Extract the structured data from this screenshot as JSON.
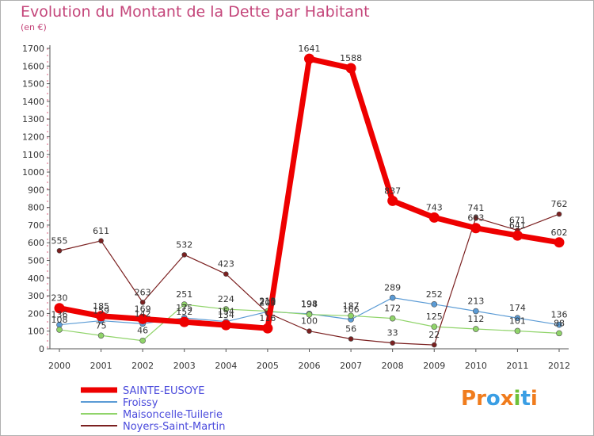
{
  "title": "Evolution du Montant de la Dette par Habitant",
  "unit_label": "(en €)",
  "logo": {
    "text": "Proxiti",
    "letters": [
      "P",
      "r",
      "o",
      "x",
      "i",
      "t",
      "i"
    ],
    "colors": [
      "#f07c1d",
      "#f07c1d",
      "#3a9ee4",
      "#f07c1d",
      "#6ec13a",
      "#3a9ee4",
      "#f07c1d"
    ]
  },
  "chart_data": {
    "type": "line",
    "title": "Evolution du Montant de la Dette par Habitant",
    "ylabel": "(en €)",
    "xlabel": "",
    "ylim": [
      0,
      1700
    ],
    "yticks": [
      0,
      100,
      200,
      300,
      400,
      500,
      600,
      700,
      800,
      900,
      1000,
      1100,
      1200,
      1300,
      1400,
      1500,
      1600,
      1700
    ],
    "categories": [
      "2000",
      "2001",
      "2002",
      "2003",
      "2004",
      "2005",
      "2006",
      "2007",
      "2008",
      "2009",
      "2010",
      "2011",
      "2012"
    ],
    "grid": false,
    "legend_position": "bottom-left",
    "series": [
      {
        "name": "SAINTE-EUSOYE",
        "color": "#ee0000",
        "values": [
          230,
          185,
          169,
          152,
          134,
          116,
          1641,
          1588,
          837,
          743,
          683,
          641,
          602
        ],
        "labels": [
          "230",
          "185",
          "169",
          "152",
          "134",
          "116",
          "1641",
          "1588",
          "837",
          "743",
          "683",
          "641",
          "602"
        ]
      },
      {
        "name": "Froissy",
        "color": "#5b9bd5",
        "values": [
          136,
          159,
          142,
          175,
          154,
          210,
          198,
          166,
          289,
          252,
          213,
          174,
          136
        ],
        "labels": [
          "136",
          "159",
          "142",
          "175",
          "154",
          "210",
          "198",
          "166",
          "289",
          "252",
          "213",
          "174",
          "136"
        ]
      },
      {
        "name": "Maisoncelle-Tuilerie",
        "color": "#90d46a",
        "values": [
          108,
          75,
          46,
          251,
          224,
          213,
          194,
          187,
          172,
          125,
          112,
          101,
          88
        ],
        "labels": [
          "108",
          "75",
          "46",
          "251",
          "224",
          "213",
          "194",
          "187",
          "172",
          "125",
          "112",
          "101",
          "88"
        ]
      },
      {
        "name": "Noyers-Saint-Martin",
        "color": "#7b2020",
        "values": [
          555,
          611,
          263,
          532,
          423,
          203,
          100,
          56,
          33,
          22,
          741,
          671,
          762
        ],
        "labels": [
          "555",
          "611",
          "263",
          "532",
          "423",
          "203",
          "100",
          "56",
          "33",
          "22",
          "741",
          "671",
          "762"
        ]
      }
    ]
  }
}
